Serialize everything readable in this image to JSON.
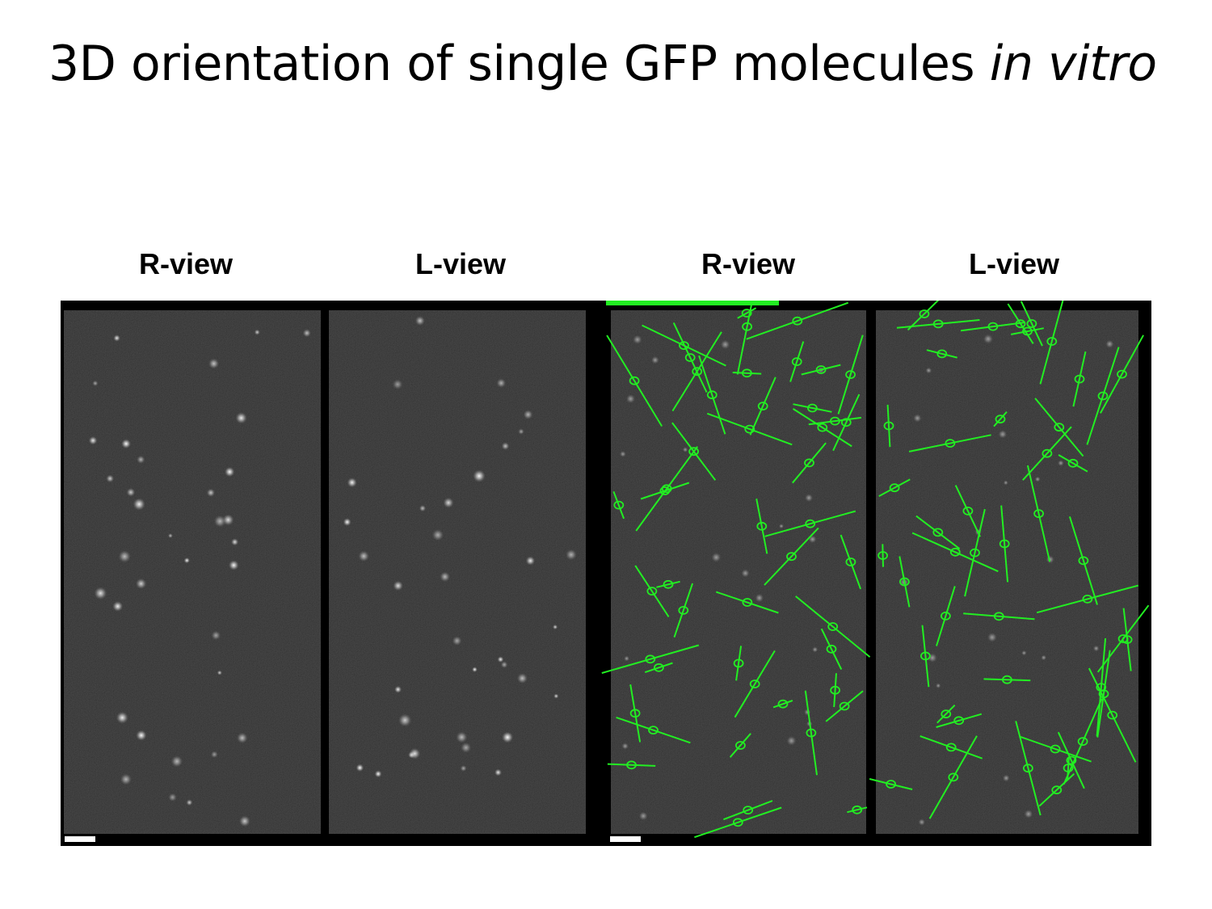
{
  "slide": {
    "title_main": "3D orientation of single GFP molecules ",
    "title_italic": "in vitro"
  },
  "figure": {
    "panel_labels": [
      "R-view",
      "L-view",
      "R-view",
      "L-view"
    ],
    "colors": {
      "background": "#000000",
      "field": "#1c1c1c",
      "spots": "#ffffff",
      "orientation_overlay": "#22ee22",
      "scale_bar": "#ffffff"
    }
  }
}
